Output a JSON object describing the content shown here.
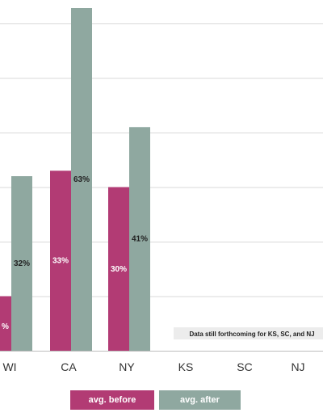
{
  "chart_data": {
    "type": "bar",
    "categories": [
      "WI",
      "CA",
      "NY",
      "KS",
      "SC",
      "NJ"
    ],
    "series": [
      {
        "name": "avg. before",
        "color": "#b23b74",
        "values": [
          10,
          33,
          30,
          null,
          null,
          null
        ],
        "labels": [
          "%",
          "33%",
          "30%",
          "",
          "",
          ""
        ]
      },
      {
        "name": "avg. after",
        "color": "#8fa8a0",
        "values": [
          32,
          63,
          41,
          null,
          null,
          null
        ],
        "labels": [
          "32%",
          "63%",
          "41%",
          "",
          "",
          ""
        ]
      }
    ],
    "ylim": [
      0,
      65
    ],
    "grid": true,
    "annotation": "Data still forthcoming for KS, SC, and NJ",
    "legend_position": "bottom"
  }
}
